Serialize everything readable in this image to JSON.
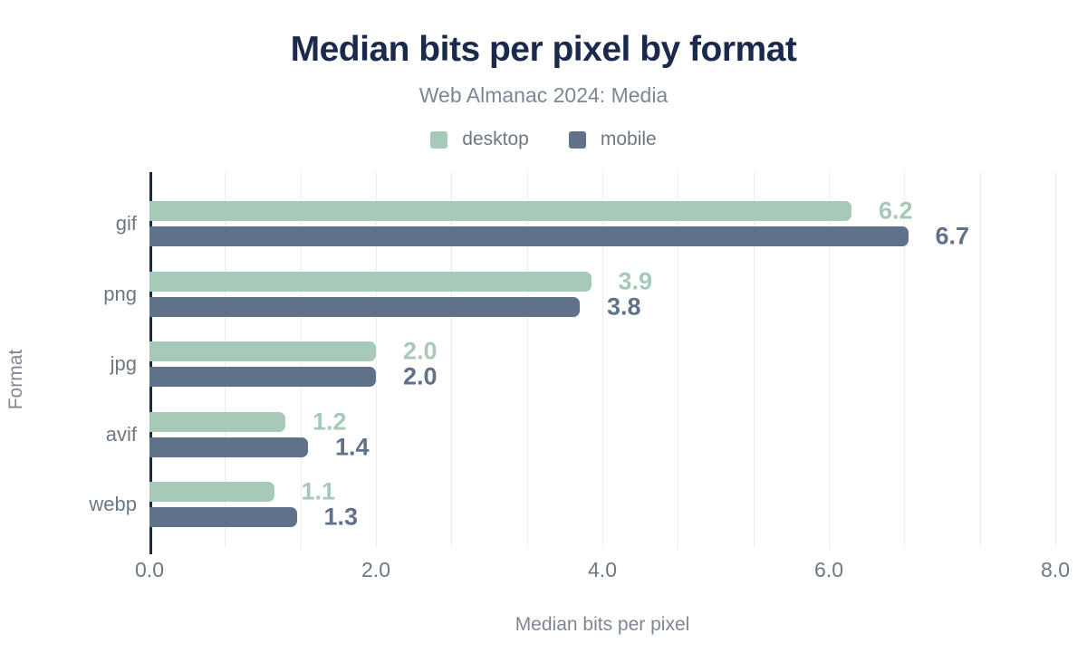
{
  "chart_data": {
    "type": "bar",
    "orientation": "horizontal",
    "title": "Median bits per pixel by format",
    "subtitle": "Web Almanac 2024: Media",
    "xlabel": "Median bits per pixel",
    "ylabel": "Format",
    "xlim": [
      0,
      8
    ],
    "xticks": [
      {
        "value": 0,
        "label": "0.0"
      },
      {
        "value": 2,
        "label": "2.0"
      },
      {
        "value": 4,
        "label": "4.0"
      },
      {
        "value": 6,
        "label": "6.0"
      },
      {
        "value": 8,
        "label": "8.0"
      }
    ],
    "grid": true,
    "gridline_count": 12,
    "legend_position": "top",
    "categories": [
      "gif",
      "png",
      "jpg",
      "avif",
      "webp"
    ],
    "series": [
      {
        "name": "desktop",
        "color": "#a7cab8",
        "values": [
          6.2,
          3.9,
          2.0,
          1.2,
          1.1
        ],
        "labels": [
          "6.2",
          "3.9",
          "2.0",
          "1.2",
          "1.1"
        ]
      },
      {
        "name": "mobile",
        "color": "#60718a",
        "values": [
          6.7,
          3.8,
          2.0,
          1.4,
          1.3
        ],
        "labels": [
          "6.7",
          "3.8",
          "2.0",
          "1.4",
          "1.3"
        ]
      }
    ]
  },
  "colors": {
    "title": "#1b2a4c",
    "muted_text": "#6d7885",
    "gridline": "#ebedf0",
    "axis_line": "#1b2a4c",
    "background": "#ffffff"
  }
}
